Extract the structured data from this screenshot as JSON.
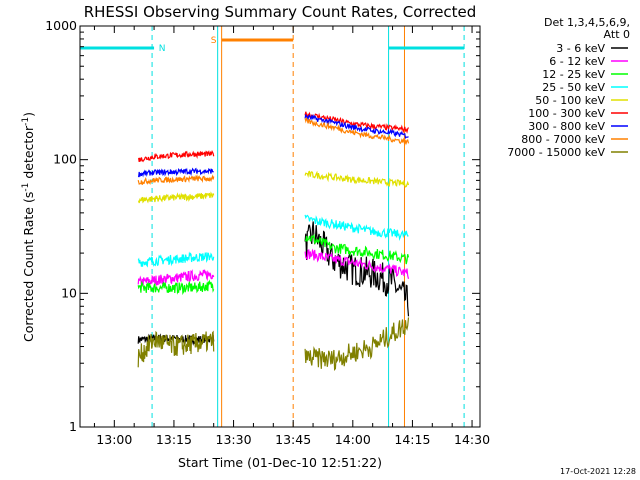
{
  "chart_data": {
    "type": "line",
    "title": "RHESSI Observing Summary Count Rates, Corrected",
    "xlabel": "Start Time (01-Dec-10 12:51:22)",
    "ylabel_main": "Corrected Count Rate (s",
    "ylabel_sup1": "-1",
    "ylabel_mid": " detector",
    "ylabel_sup2": "-1",
    "ylabel_end": ")",
    "y_scale": "log",
    "xlim": [
      "12:51:22",
      "14:32:00"
    ],
    "ylim": [
      1,
      1000
    ],
    "x_ticks": [
      "13:00",
      "13:15",
      "13:30",
      "13:45",
      "14:00",
      "14:15",
      "14:30"
    ],
    "y_ticks": [
      "1",
      "10",
      "100",
      "1000"
    ],
    "grid": false,
    "legend_title_1": "Det 1,3,4,5,6,9,",
    "legend_title_2": "Att 0",
    "legend_position": "right",
    "timestamp": "17-Oct-2021 12:28",
    "flags": [
      {
        "label": "N",
        "color": "#00e0e0",
        "start": "12:51:22",
        "end": "13:10:00"
      },
      {
        "label": "N",
        "color": "#00e0e0",
        "start": "14:09:00",
        "end": "14:28:00"
      },
      {
        "label": "S",
        "color": "#ff8000",
        "start": "13:27:00",
        "end": "13:45:00"
      }
    ],
    "markers": [
      {
        "time": "13:09:30",
        "color": "#00e0e0",
        "style": "dashed"
      },
      {
        "time": "13:26:00",
        "color": "#00e0e0",
        "style": "solid"
      },
      {
        "time": "13:27:00",
        "color": "#ff8000",
        "style": "solid"
      },
      {
        "time": "13:45:00",
        "color": "#ff8000",
        "style": "dashed"
      },
      {
        "time": "14:09:00",
        "color": "#00e0e0",
        "style": "solid"
      },
      {
        "time": "14:13:00",
        "color": "#ff8000",
        "style": "solid"
      },
      {
        "time": "14:28:00",
        "color": "#00e0e0",
        "style": "dashed"
      }
    ],
    "series": [
      {
        "name": "3 - 6 keV",
        "color": "#000000",
        "seg1": {
          "x": [
            "13:06",
            "13:10",
            "13:15",
            "13:20",
            "13:25"
          ],
          "y": [
            4.5,
            4.6,
            4.6,
            4.5,
            4.6
          ]
        },
        "seg2": {
          "x": [
            "13:48",
            "13:50",
            "13:55",
            "14:00",
            "14:05",
            "14:10",
            "14:14"
          ],
          "y": [
            22,
            28,
            18,
            15,
            14,
            12,
            8.5
          ]
        }
      },
      {
        "name": "6 - 12 keV",
        "color": "#ff00ff",
        "seg1": {
          "x": [
            "13:06",
            "13:10",
            "13:15",
            "13:20",
            "13:25"
          ],
          "y": [
            12,
            12.5,
            13,
            13.5,
            14
          ]
        },
        "seg2": {
          "x": [
            "13:48",
            "13:55",
            "14:00",
            "14:05",
            "14:10",
            "14:14"
          ],
          "y": [
            20,
            18,
            17,
            16,
            15,
            14
          ]
        }
      },
      {
        "name": "12 - 25 keV",
        "color": "#00ff00",
        "seg1": {
          "x": [
            "13:06",
            "13:10",
            "13:15",
            "13:20",
            "13:25"
          ],
          "y": [
            11,
            11,
            11,
            11,
            11.5
          ]
        },
        "seg2": {
          "x": [
            "13:48",
            "13:55",
            "14:00",
            "14:05",
            "14:10",
            "14:14"
          ],
          "y": [
            27,
            22,
            21,
            20,
            19,
            18
          ]
        }
      },
      {
        "name": "25 - 50 keV",
        "color": "#00ffff",
        "seg1": {
          "x": [
            "13:06",
            "13:10",
            "13:15",
            "13:20",
            "13:25"
          ],
          "y": [
            17,
            17.5,
            18,
            18.5,
            19
          ]
        },
        "seg2": {
          "x": [
            "13:48",
            "13:55",
            "14:00",
            "14:05",
            "14:10",
            "14:14"
          ],
          "y": [
            36,
            33,
            31,
            29,
            28,
            27
          ]
        }
      },
      {
        "name": "50 - 100 keV",
        "color": "#e0e000",
        "seg1": {
          "x": [
            "13:06",
            "13:10",
            "13:15",
            "13:20",
            "13:25"
          ],
          "y": [
            50,
            51,
            52,
            53,
            54
          ]
        },
        "seg2": {
          "x": [
            "13:48",
            "13:55",
            "14:00",
            "14:05",
            "14:10",
            "14:14"
          ],
          "y": [
            78,
            74,
            71,
            69,
            67,
            66
          ]
        }
      },
      {
        "name": "100 - 300 keV",
        "color": "#ff0000",
        "seg1": {
          "x": [
            "13:06",
            "13:10",
            "13:15",
            "13:20",
            "13:25"
          ],
          "y": [
            100,
            105,
            108,
            110,
            110
          ]
        },
        "seg2": {
          "x": [
            "13:48",
            "13:55",
            "14:00",
            "14:05",
            "14:10",
            "14:14"
          ],
          "y": [
            220,
            200,
            185,
            178,
            172,
            168
          ]
        }
      },
      {
        "name": "300 - 800 keV",
        "color": "#0000ff",
        "seg1": {
          "x": [
            "13:06",
            "13:10",
            "13:15",
            "13:20",
            "13:25"
          ],
          "y": [
            78,
            80,
            81,
            82,
            82
          ]
        },
        "seg2": {
          "x": [
            "13:48",
            "13:55",
            "14:00",
            "14:05",
            "14:10",
            "14:14"
          ],
          "y": [
            210,
            190,
            175,
            165,
            158,
            150
          ]
        }
      },
      {
        "name": "800 - 7000 keV",
        "color": "#ff8000",
        "seg1": {
          "x": [
            "13:06",
            "13:10",
            "13:15",
            "13:20",
            "13:25"
          ],
          "y": [
            68,
            70,
            71,
            72,
            72
          ]
        },
        "seg2": {
          "x": [
            "13:48",
            "13:55",
            "14:00",
            "14:05",
            "14:10",
            "14:14"
          ],
          "y": [
            195,
            175,
            160,
            150,
            142,
            135
          ]
        }
      },
      {
        "name": "7000 - 15000 keV",
        "color": "#808000",
        "seg1": {
          "x": [
            "13:06",
            "13:10",
            "13:15",
            "13:20",
            "13:25"
          ],
          "y": [
            3.3,
            4.5,
            4.0,
            4.2,
            4.4
          ]
        },
        "seg2": {
          "x": [
            "13:48",
            "13:55",
            "14:00",
            "14:05",
            "14:10",
            "14:14"
          ],
          "y": [
            3.3,
            3.2,
            3.6,
            4.0,
            5.0,
            6.0
          ]
        }
      }
    ]
  }
}
